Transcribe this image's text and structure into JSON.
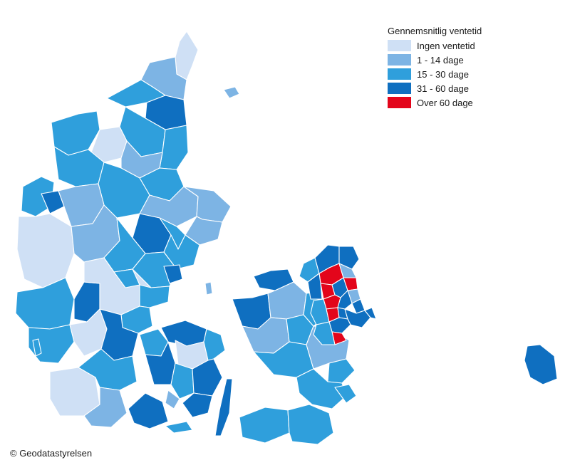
{
  "legend": {
    "title": "Gennemsnitlig ventetid",
    "items": [
      {
        "label": "Ingen ventetid",
        "color": "#cfe0f5"
      },
      {
        "label": "1 - 14 dage",
        "color": "#7db4e4"
      },
      {
        "label": "15 - 30 dage",
        "color": "#2f9fdc"
      },
      {
        "label": "31 - 60 dage",
        "color": "#0f6fc0"
      },
      {
        "label": "Over 60 dage",
        "color": "#e3051b"
      }
    ]
  },
  "credit": "© Geodatastyrelsen"
}
